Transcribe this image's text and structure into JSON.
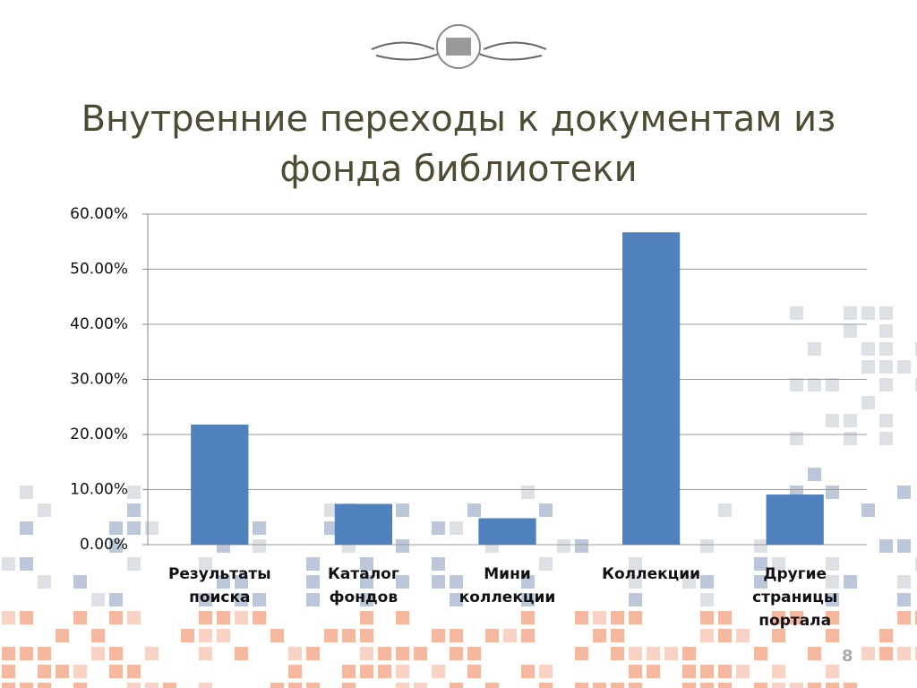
{
  "chart_data": {
    "type": "bar",
    "title": "Внутренние переходы к документам из фонда библиотеки",
    "page_number": "8",
    "categories": [
      "Результаты поиска",
      "Каталог фондов",
      "Мини коллекции",
      "Коллекции",
      "Другие страницы портала"
    ],
    "values": [
      21.8,
      7.4,
      4.8,
      56.7,
      9.1
    ],
    "color": "#4f81bd",
    "ylim": [
      0,
      60
    ],
    "yticks": [
      {
        "value": 0,
        "label": "0.00%"
      },
      {
        "value": 10,
        "label": "10.00%"
      },
      {
        "value": 20,
        "label": "20.00%"
      },
      {
        "value": 30,
        "label": "30.00%"
      },
      {
        "value": 40,
        "label": "40.00%"
      },
      {
        "value": 50,
        "label": "50.00%"
      },
      {
        "value": 60,
        "label": "60.00%"
      }
    ],
    "grid": true
  }
}
